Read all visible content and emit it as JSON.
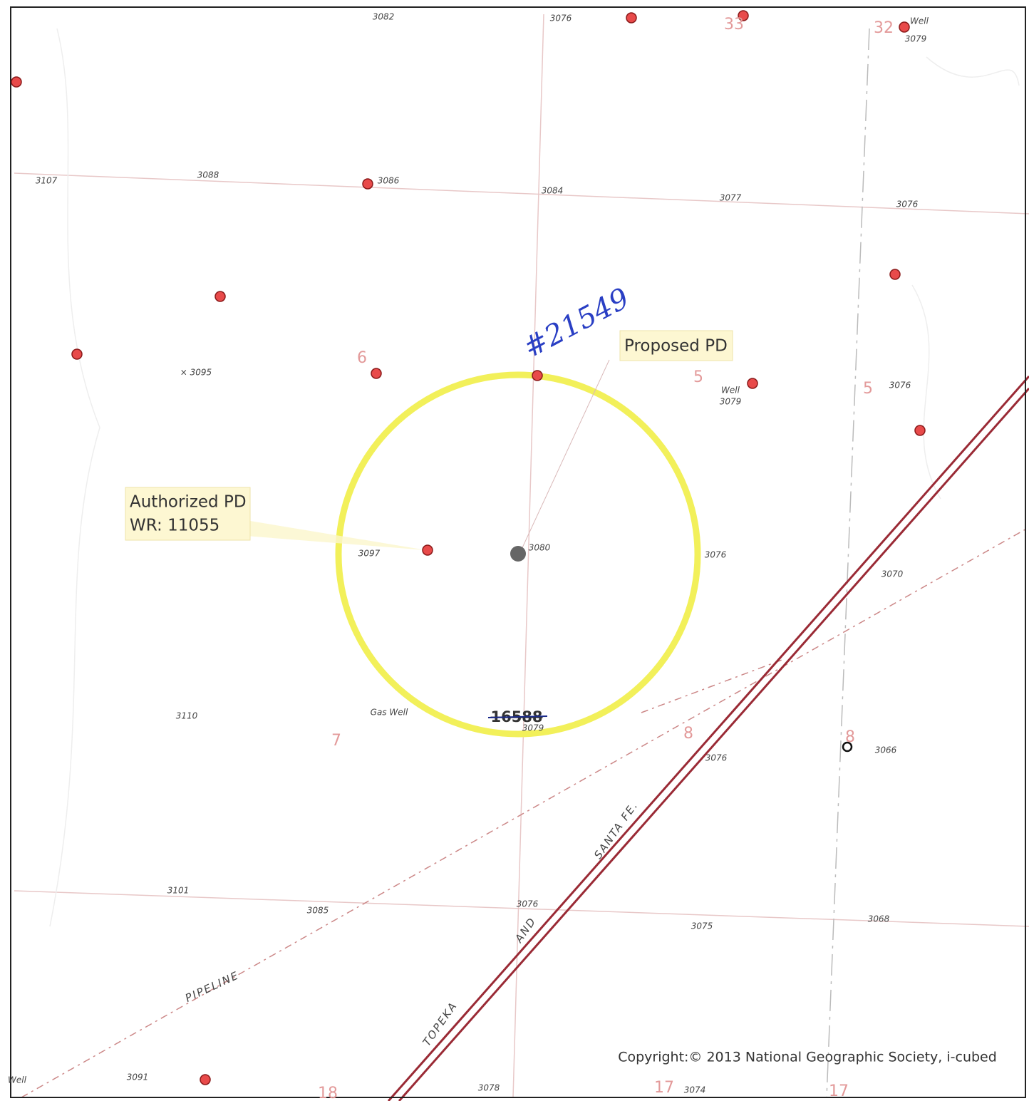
{
  "map": {
    "labels": [
      "3082",
      "3076",
      "33",
      "32",
      "Well",
      "3079",
      "3107",
      "3088",
      "3086",
      "3084",
      "3077",
      "3076",
      "6",
      "× 3095",
      "5",
      "Well",
      "3079",
      "5",
      "3076",
      "3097",
      "3080",
      "3076",
      "3070",
      "3110",
      "Gas Well",
      "3079",
      "7",
      "8",
      "3076",
      "8",
      "3066",
      "3101",
      "3085",
      "3076",
      "3075",
      "3068",
      "Well",
      "3091",
      "18",
      "3078",
      "17",
      "3074",
      "17"
    ],
    "road_labels": [
      "SANTA FE.",
      "AND",
      "TOPEKA",
      "PIPELINE"
    ],
    "proposed_callout": "Proposed PD",
    "authorized_callout": [
      "Authorized PD",
      "WR: 11055"
    ],
    "handwritten_note": "#21549",
    "struck_label": "16588",
    "copyright": "Copyright:© 2013 National Geographic Society, i-cubed"
  }
}
